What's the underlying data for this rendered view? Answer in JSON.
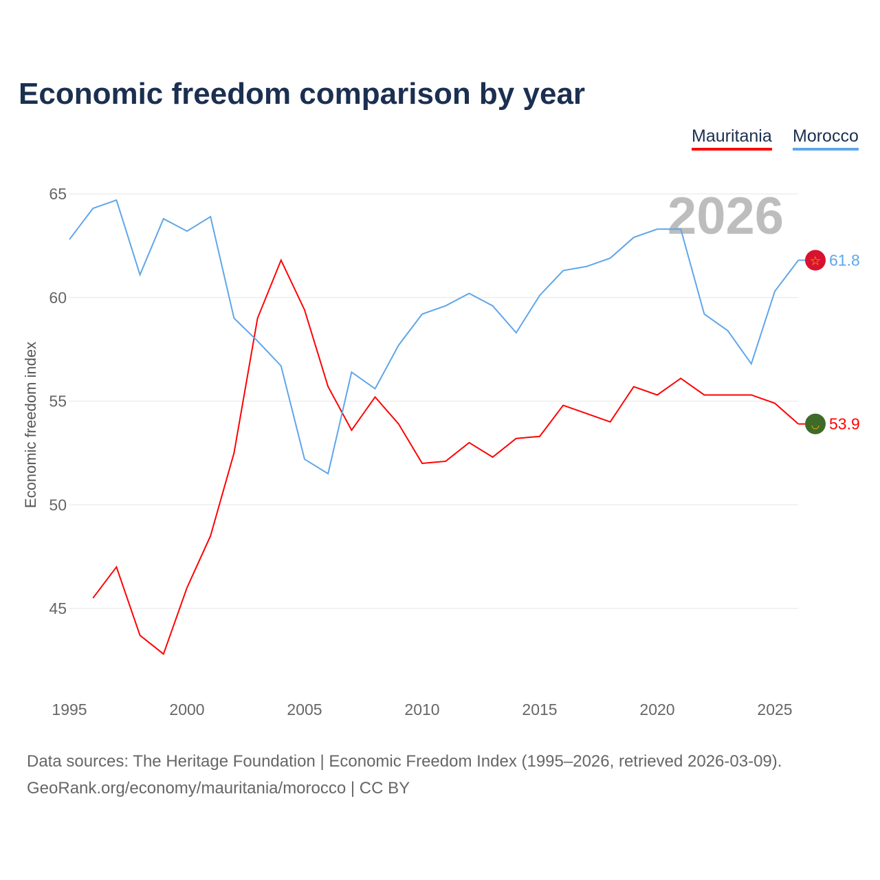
{
  "chart_data": {
    "type": "line",
    "title": "Economic freedom comparison by year",
    "xlabel": "",
    "ylabel": "Economic freedom index",
    "xlim": [
      1995,
      2026
    ],
    "ylim": [
      41,
      66
    ],
    "yticks": [
      45,
      50,
      55,
      60,
      65
    ],
    "xticks": [
      1995,
      2000,
      2005,
      2010,
      2015,
      2020,
      2025
    ],
    "grid": true,
    "legend_placement": "top-right",
    "year_label": "2026",
    "series": [
      {
        "name": "Mauritania",
        "color": "#ff0000",
        "end_label": "53.9",
        "flag": "mauritania-flag-icon",
        "x": [
          1996,
          1997,
          1998,
          1999,
          2000,
          2001,
          2002,
          2003,
          2004,
          2005,
          2006,
          2007,
          2008,
          2009,
          2010,
          2011,
          2012,
          2013,
          2014,
          2015,
          2016,
          2017,
          2018,
          2019,
          2020,
          2021,
          2022,
          2023,
          2024,
          2025,
          2026
        ],
        "values": [
          45.5,
          47.0,
          43.7,
          42.8,
          46.0,
          48.5,
          52.5,
          59.0,
          61.8,
          59.4,
          55.7,
          53.6,
          55.2,
          53.9,
          52.0,
          52.1,
          53.0,
          52.3,
          53.2,
          53.3,
          54.8,
          54.4,
          54.0,
          55.7,
          55.3,
          56.1,
          55.3,
          55.3,
          55.3,
          54.9,
          53.9
        ]
      },
      {
        "name": "Morocco",
        "color": "#5ea6ea",
        "end_label": "61.8",
        "flag": "morocco-flag-icon",
        "x": [
          1995,
          1996,
          1997,
          1998,
          1999,
          2000,
          2001,
          2002,
          2003,
          2004,
          2005,
          2006,
          2007,
          2008,
          2009,
          2010,
          2011,
          2012,
          2013,
          2014,
          2015,
          2016,
          2017,
          2018,
          2019,
          2020,
          2021,
          2022,
          2023,
          2024,
          2025,
          2026
        ],
        "values": [
          62.8,
          64.3,
          64.7,
          61.1,
          63.8,
          63.2,
          63.9,
          59.0,
          57.9,
          56.7,
          52.2,
          51.5,
          56.4,
          55.6,
          57.7,
          59.2,
          59.6,
          60.2,
          59.6,
          58.3,
          60.1,
          61.3,
          61.5,
          61.9,
          62.9,
          63.3,
          63.3,
          59.2,
          58.4,
          56.8,
          60.3,
          61.8
        ]
      }
    ]
  },
  "footer": {
    "line1": "Data sources: The Heritage Foundation | Economic Freedom Index (1995–2026, retrieved 2026-03-09).",
    "line2": "GeoRank.org/economy/mauritania/morocco | CC BY"
  }
}
